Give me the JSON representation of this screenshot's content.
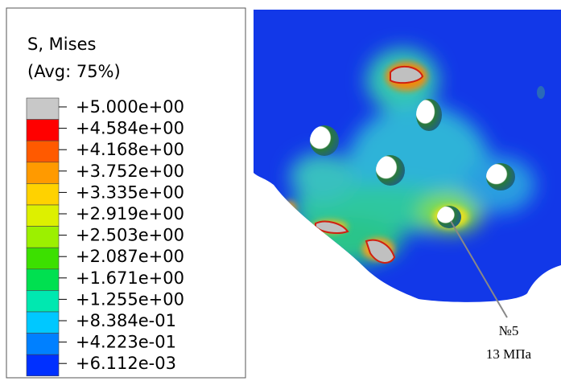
{
  "legend": {
    "title": "S, Mises",
    "subtitle": "(Avg: 75%)",
    "labels": [
      "+5.000e+00",
      "+4.584e+00",
      "+4.168e+00",
      "+3.752e+00",
      "+3.335e+00",
      "+2.919e+00",
      "+2.503e+00",
      "+2.087e+00",
      "+1.671e+00",
      "+1.255e+00",
      "+8.384e-01",
      "+4.223e-01",
      "+6.112e-03"
    ]
  },
  "annotation": {
    "label": "№5",
    "value": "13 МПа"
  }
}
